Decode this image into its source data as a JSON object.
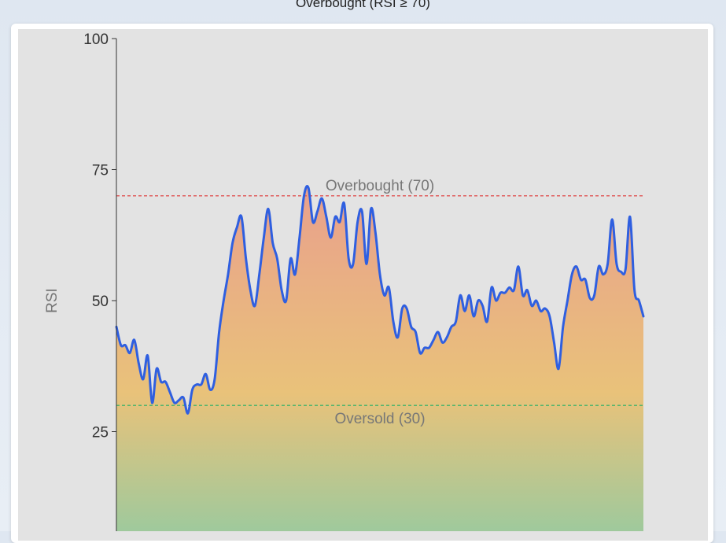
{
  "header": {
    "caption": "Overbought (RSI ≥ 70)"
  },
  "chart_data": {
    "type": "area",
    "title": "",
    "xlabel": "",
    "ylabel": "RSI",
    "ylim": [
      0,
      100
    ],
    "yticks": [
      25,
      50,
      75,
      100
    ],
    "grid": false,
    "reference_lines": [
      {
        "label": "Overbought (70)",
        "value": 70,
        "color": "#e05555"
      },
      {
        "label": "Oversold (30)",
        "value": 30,
        "color": "#3fb36a"
      }
    ],
    "series": [
      {
        "line_color": "#2f5fe0",
        "fill_top_color": "#e9a08c",
        "fill_mid_color": "#e9c27a",
        "fill_bottom_color": "#8ecba4",
        "values": [
          45,
          41.5,
          41.5,
          40,
          42.5,
          38,
          35,
          39.5,
          30.5,
          37,
          34.5,
          34.5,
          32.5,
          30.5,
          31,
          31.5,
          28.5,
          33,
          34,
          34,
          36,
          33,
          35,
          44,
          50,
          55,
          61,
          64,
          66,
          58,
          52,
          49,
          55,
          62,
          67.5,
          61,
          58,
          52,
          50,
          58,
          55,
          62,
          70,
          71.5,
          65,
          67,
          69.5,
          66,
          62,
          66,
          65,
          68.5,
          58,
          57,
          65,
          67,
          57,
          67.5,
          63,
          55,
          51,
          52.5,
          46,
          43,
          48.5,
          48.5,
          45,
          44,
          40,
          41,
          41,
          42.5,
          44,
          42,
          43,
          45,
          46,
          51,
          48,
          51,
          47,
          50,
          49,
          46,
          52.5,
          50,
          51.5,
          51.5,
          52.5,
          52,
          56.5,
          51,
          52,
          49,
          50,
          48,
          48.5,
          47,
          42,
          37,
          45,
          50,
          55,
          56.5,
          54,
          54,
          50.5,
          51,
          56.5,
          55,
          57,
          65.5,
          57,
          55.5,
          56,
          66,
          52,
          50,
          47
        ]
      }
    ]
  }
}
